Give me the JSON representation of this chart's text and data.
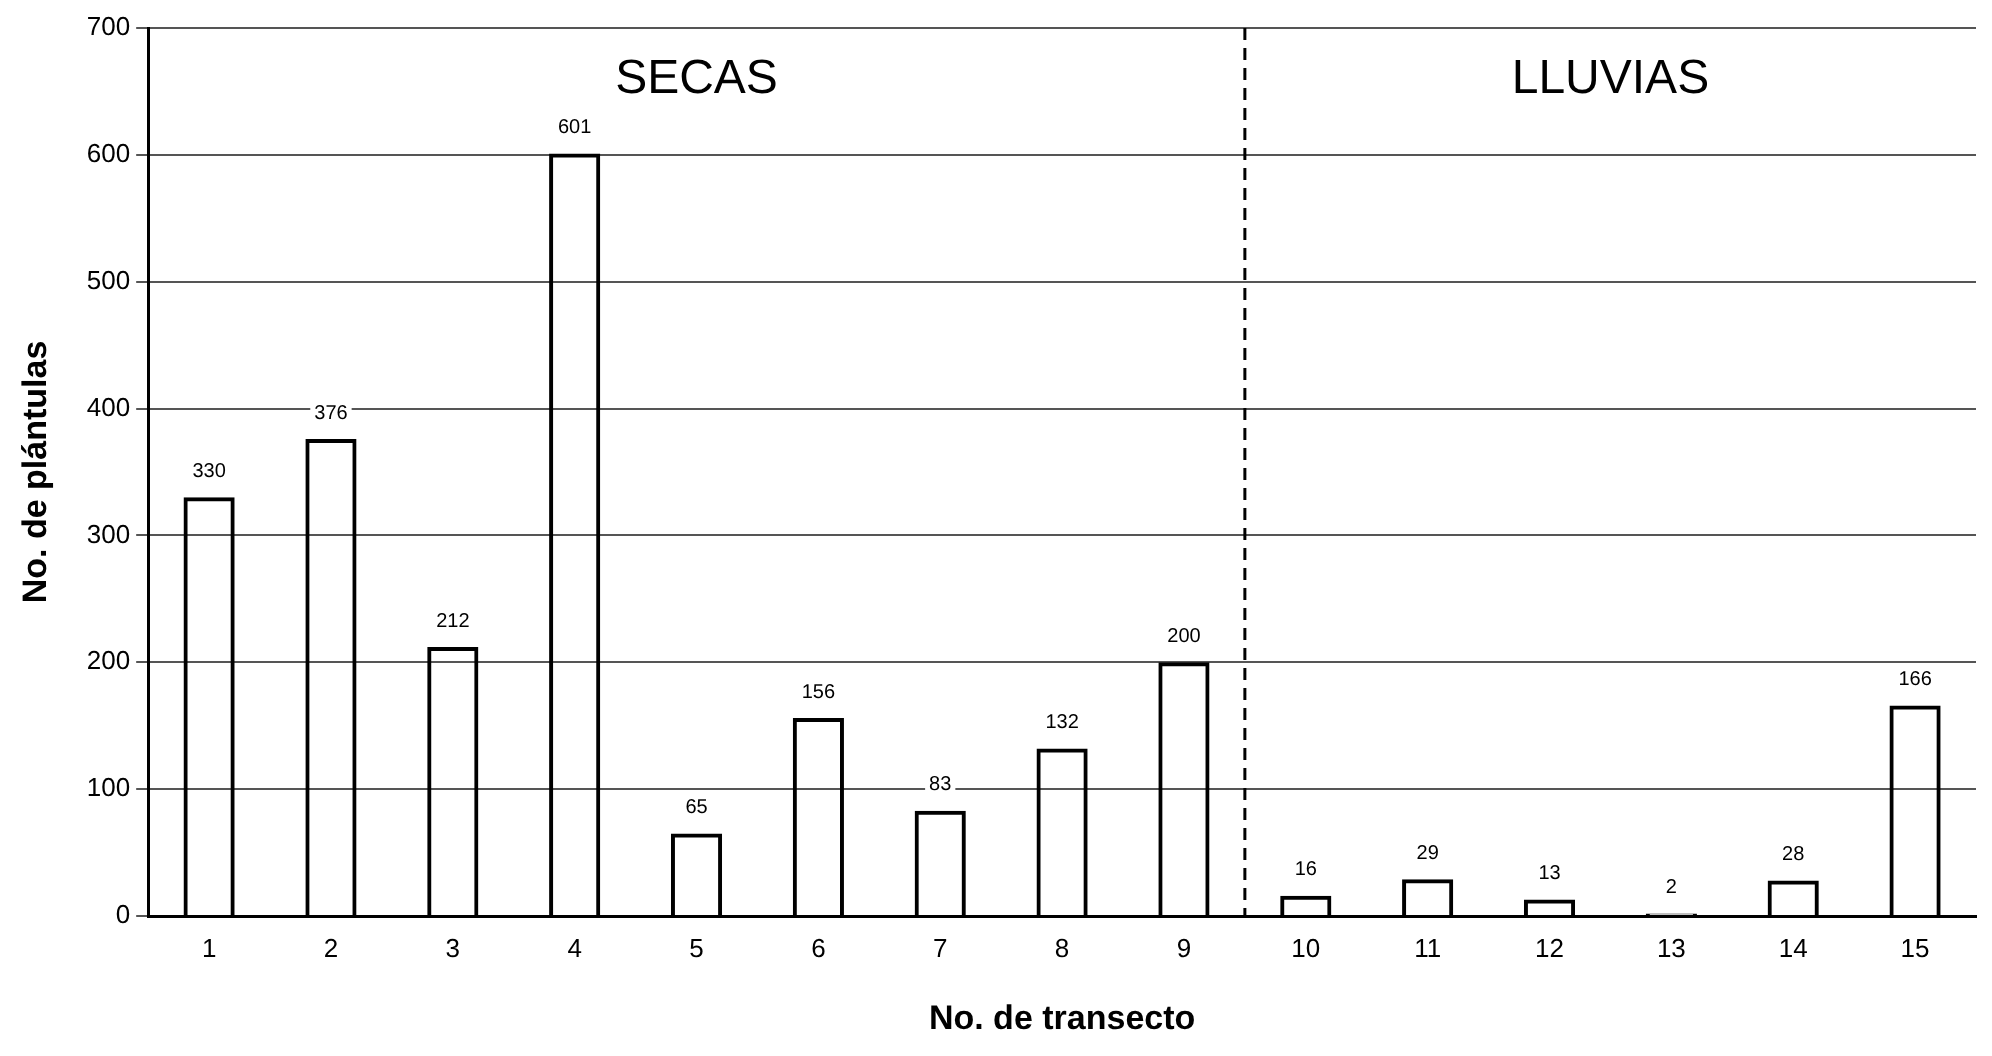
{
  "chart_data": {
    "type": "bar",
    "xlabel": "No. de transecto",
    "ylabel": "No. de plántulas",
    "x": [
      1,
      2,
      3,
      4,
      5,
      6,
      7,
      8,
      9,
      10,
      11,
      12,
      13,
      14,
      15
    ],
    "values": [
      330,
      376,
      212,
      601,
      65,
      156,
      83,
      132,
      200,
      16,
      29,
      13,
      2,
      28,
      166
    ],
    "color": "#000000",
    "xlim": [
      0.5,
      15.5
    ],
    "xticks": [
      1,
      2,
      3,
      4,
      5,
      6,
      7,
      8,
      9,
      10,
      11,
      12,
      13,
      14,
      15
    ],
    "ylim": [
      0,
      700
    ],
    "yticks": [
      0,
      100,
      200,
      300,
      400,
      500,
      600,
      700
    ],
    "grid": "y",
    "data_labels": true,
    "ref_lines": [
      {
        "axis": "x",
        "value": 9.5,
        "line_style": "dashed",
        "color": "#000000"
      }
    ],
    "annotations": [
      "SECAS",
      "LLUVIAS"
    ]
  }
}
